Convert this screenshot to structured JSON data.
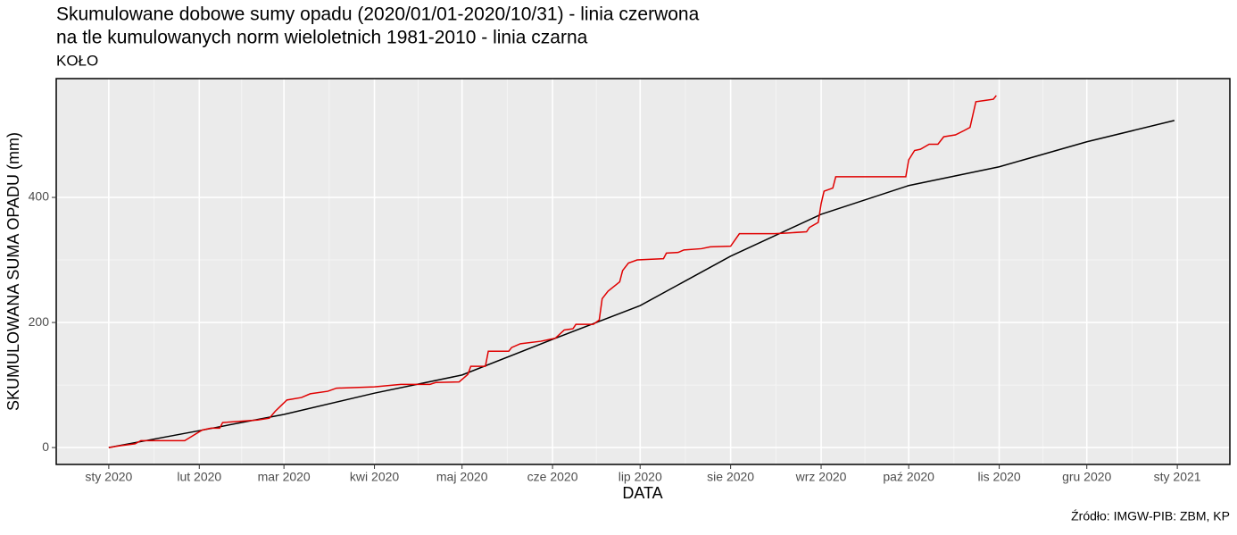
{
  "chart_data": {
    "type": "line",
    "title": "Skumulowane dobowe sumy opadu (2020/01/01-2020/10/31) - linia czerwona",
    "subtitle": "na tle kumulowanych norm wieloletnich 1981-2010 - linia czarna",
    "station": "KOŁO",
    "x_label": "DATA",
    "y_label": "SKUMULOWANA SUMA OPADU (mm)",
    "source": "Źródło: IMGW-PIB: ZBM, KP",
    "grid": true,
    "xlim": [
      "2019-12-14",
      "2021-01-19"
    ],
    "ylim": [
      -27,
      590
    ],
    "yticks": [
      0,
      200,
      400
    ],
    "xticks": [
      {
        "value": "2020-01-01",
        "label": "sty 2020"
      },
      {
        "value": "2020-02-01",
        "label": "lut 2020"
      },
      {
        "value": "2020-03-01",
        "label": "mar 2020"
      },
      {
        "value": "2020-04-01",
        "label": "kwi 2020"
      },
      {
        "value": "2020-05-01",
        "label": "maj 2020"
      },
      {
        "value": "2020-06-01",
        "label": "cze 2020"
      },
      {
        "value": "2020-07-01",
        "label": "lip 2020"
      },
      {
        "value": "2020-08-01",
        "label": "sie 2020"
      },
      {
        "value": "2020-09-01",
        "label": "wrz 2020"
      },
      {
        "value": "2020-10-01",
        "label": "paź 2020"
      },
      {
        "value": "2020-11-01",
        "label": "lis 2020"
      },
      {
        "value": "2020-12-01",
        "label": "gru 2020"
      },
      {
        "value": "2021-01-01",
        "label": "sty 2021"
      }
    ],
    "series": [
      {
        "color": "#000000",
        "x": [
          "2020-01-01",
          "2020-02-01",
          "2020-03-01",
          "2020-04-01",
          "2020-05-01",
          "2020-06-01",
          "2020-07-01",
          "2020-08-01",
          "2020-09-01",
          "2020-10-01",
          "2020-11-01",
          "2020-12-01",
          "2020-12-31"
        ],
        "values": [
          0,
          27,
          53,
          87,
          116,
          173,
          227,
          306,
          373,
          419,
          449,
          489,
          523
        ]
      },
      {
        "color": "#e00000",
        "x": [
          "2020-01-01",
          "2020-01-05",
          "2020-01-10",
          "2020-01-12",
          "2020-01-27",
          "2020-02-02",
          "2020-02-05",
          "2020-02-08",
          "2020-02-09",
          "2020-02-21",
          "2020-02-25",
          "2020-02-27",
          "2020-02-29",
          "2020-03-02",
          "2020-03-07",
          "2020-03-10",
          "2020-03-16",
          "2020-03-19",
          "2020-04-01",
          "2020-04-10",
          "2020-04-20",
          "2020-04-22",
          "2020-04-30",
          "2020-05-03",
          "2020-05-04",
          "2020-05-09",
          "2020-05-10",
          "2020-05-17",
          "2020-05-18",
          "2020-05-21",
          "2020-05-28",
          "2020-06-02",
          "2020-06-05",
          "2020-06-08",
          "2020-06-09",
          "2020-06-15",
          "2020-06-17",
          "2020-06-18",
          "2020-06-20",
          "2020-06-24",
          "2020-06-25",
          "2020-06-27",
          "2020-06-30",
          "2020-07-09",
          "2020-07-10",
          "2020-07-14",
          "2020-07-16",
          "2020-07-22",
          "2020-07-25",
          "2020-08-01",
          "2020-08-04",
          "2020-08-16",
          "2020-08-20",
          "2020-08-27",
          "2020-08-28",
          "2020-08-31",
          "2020-09-01",
          "2020-09-02",
          "2020-09-05",
          "2020-09-06",
          "2020-09-30",
          "2020-10-01",
          "2020-10-03",
          "2020-10-05",
          "2020-10-08",
          "2020-10-11",
          "2020-10-13",
          "2020-10-17",
          "2020-10-20",
          "2020-10-22",
          "2020-10-24",
          "2020-10-27",
          "2020-10-30",
          "2020-10-31"
        ],
        "values": [
          0,
          3,
          6,
          11,
          11,
          28,
          31,
          31,
          40,
          44,
          47,
          58,
          67,
          76,
          80,
          86,
          90,
          95,
          97,
          101,
          101,
          104,
          105,
          117,
          130,
          130,
          154,
          154,
          160,
          166,
          170,
          175,
          188,
          190,
          197,
          197,
          204,
          238,
          250,
          265,
          283,
          295,
          300,
          302,
          311,
          312,
          316,
          318,
          321,
          322,
          342,
          342,
          343,
          345,
          352,
          360,
          390,
          410,
          415,
          433,
          433,
          460,
          475,
          477,
          485,
          485,
          497,
          500,
          507,
          512,
          553,
          555,
          557,
          563
        ]
      }
    ]
  }
}
